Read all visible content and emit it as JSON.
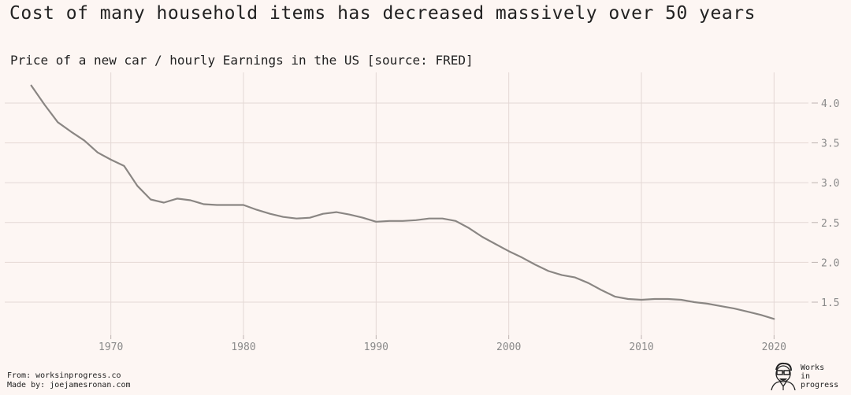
{
  "title": "Cost of many household items has decreased massively over 50 years",
  "subtitle": "Price of a new car / hourly Earnings in the US [source: FRED]",
  "footer": {
    "line1": "From: worksinprogress.co",
    "line2": "Made by: joejamesronan.com"
  },
  "logo": {
    "line1": "Works",
    "line2": "in",
    "line3": "progress"
  },
  "colors": {
    "background": "#fdf6f3",
    "line": "#8a8683",
    "grid": "#e4d8d5",
    "tick": "#8a8a8a"
  },
  "chart_data": {
    "type": "line",
    "title": "Cost of many household items has decreased massively over 50 years",
    "subtitle": "Price of a new car / hourly Earnings in the US [source: FRED]",
    "xlabel": "",
    "ylabel": "",
    "xlim": [
      1962,
      2022
    ],
    "ylim": [
      1.2,
      4.35
    ],
    "xticks": [
      1970,
      1980,
      1990,
      2000,
      2010,
      2020
    ],
    "yticks": [
      1.5,
      2.0,
      2.5,
      3.0,
      3.5,
      4.0
    ],
    "ytick_labels": [
      "1.5",
      "2.0",
      "2.5",
      "3.0",
      "3.5",
      "4.0"
    ],
    "grid": true,
    "y_axis_side": "right",
    "series": [
      {
        "name": "Price of a new car / hourly earnings",
        "x": [
          1964,
          1965,
          1966,
          1967,
          1968,
          1969,
          1970,
          1971,
          1972,
          1973,
          1974,
          1975,
          1976,
          1977,
          1978,
          1979,
          1980,
          1981,
          1982,
          1983,
          1984,
          1985,
          1986,
          1987,
          1988,
          1989,
          1990,
          1991,
          1992,
          1993,
          1994,
          1995,
          1996,
          1997,
          1998,
          1999,
          2000,
          2001,
          2002,
          2003,
          2004,
          2005,
          2006,
          2007,
          2008,
          2009,
          2010,
          2011,
          2012,
          2013,
          2014,
          2015,
          2016,
          2017,
          2018,
          2019,
          2020
        ],
        "values": [
          4.22,
          3.98,
          3.76,
          3.64,
          3.53,
          3.38,
          3.29,
          3.21,
          2.96,
          2.79,
          2.75,
          2.8,
          2.78,
          2.73,
          2.72,
          2.72,
          2.72,
          2.66,
          2.61,
          2.57,
          2.55,
          2.56,
          2.61,
          2.63,
          2.6,
          2.56,
          2.51,
          2.52,
          2.52,
          2.53,
          2.55,
          2.55,
          2.52,
          2.43,
          2.32,
          2.23,
          2.14,
          2.06,
          1.97,
          1.89,
          1.84,
          1.81,
          1.74,
          1.65,
          1.57,
          1.54,
          1.53,
          1.54,
          1.54,
          1.53,
          1.5,
          1.48,
          1.45,
          1.42,
          1.38,
          1.34,
          1.29
        ]
      }
    ]
  }
}
